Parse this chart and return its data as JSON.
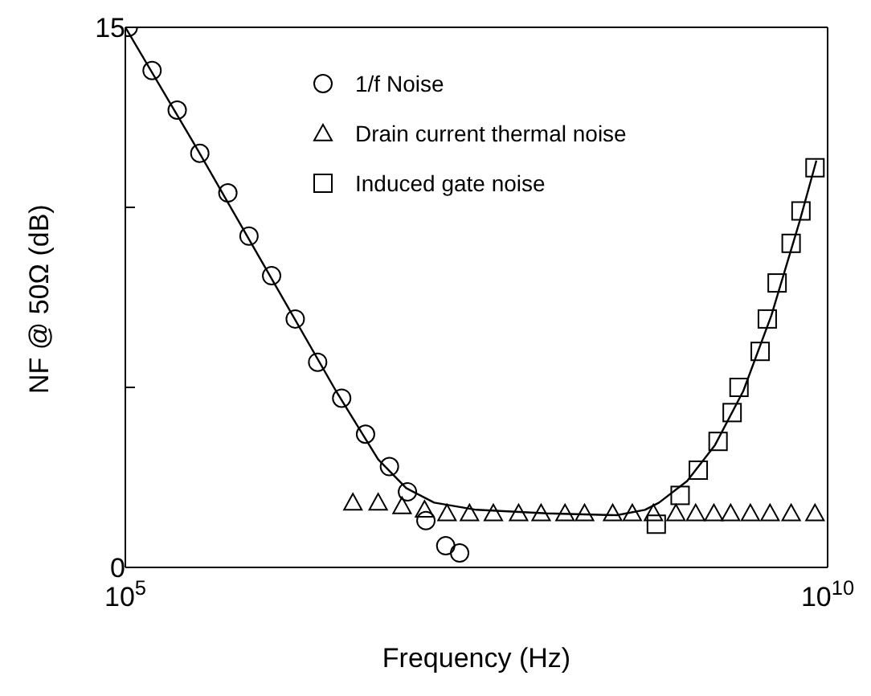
{
  "chart_data": {
    "type": "scatter",
    "xlabel": "Frequency (Hz)",
    "ylabel": "NF @ 50Ω (dB)",
    "log": "x",
    "xlim": [
      100000,
      10000000000
    ],
    "xticks": [
      {
        "value": 100000,
        "label": "10$^{5}$"
      },
      {
        "value": 10000000000,
        "label": "10$^{10}$"
      }
    ],
    "ylim": [
      0,
      15
    ],
    "yticks": [
      0,
      {
        "value": 5,
        "label": null
      },
      {
        "value": 10,
        "label": null
      },
      15
    ],
    "legend": "top right",
    "series": [
      {
        "name": "1/f Noise",
        "color": "#000000",
        "marker": "circle",
        "x": [
          105000.0,
          155000.0,
          234000.0,
          339000.0,
          537000.0,
          759000.0,
          1100000.0,
          1620000.0,
          2340000.0,
          3470000.0,
          5130000.0,
          7590000.0,
          10200000.0,
          13800000.0,
          19100000.0,
          24000000.0
        ],
        "values": [
          15.0,
          13.8,
          12.7,
          11.5,
          10.4,
          9.2,
          8.1,
          6.9,
          5.7,
          4.7,
          3.7,
          2.8,
          2.1,
          1.3,
          0.6,
          0.4
        ]
      },
      {
        "name": "Drain current thermal noise",
        "color": "#000000",
        "marker": "triangle",
        "x": [
          4170000.0,
          6310000.0,
          9330000.0,
          13500000.0,
          19500000.0,
          28200000.0,
          41700000.0,
          63100000.0,
          91200000.0,
          135000000.0,
          186000000.0,
          295000000.0,
          407000000.0,
          575000000.0,
          832000000.0,
          1150000000.0,
          1550000000.0,
          2040000000.0,
          2820000000.0,
          3890000000.0,
          5500000000.0,
          8130000000.0
        ],
        "values": [
          1.8,
          1.8,
          1.7,
          1.6,
          1.5,
          1.5,
          1.5,
          1.5,
          1.5,
          1.5,
          1.5,
          1.5,
          1.5,
          1.5,
          1.5,
          1.5,
          1.5,
          1.5,
          1.5,
          1.5,
          1.5,
          1.5
        ]
      },
      {
        "name": "Induced gate noise",
        "color": "#000000",
        "marker": "square",
        "x": [
          603000000.0,
          891000000.0,
          1200000000.0,
          1660000000.0,
          2090000000.0,
          2340000000.0,
          3310000000.0,
          3720000000.0,
          4370000000.0,
          5500000000.0,
          6460000000.0,
          8130000000.0
        ],
        "values": [
          1.2,
          2.0,
          2.7,
          3.5,
          4.3,
          5.0,
          6.0,
          6.9,
          7.9,
          9.0,
          9.9,
          11.1
        ]
      },
      {
        "type": "line",
        "color": "#000000",
        "marker": "none",
        "line_style": "solid",
        "x": [
          100000.0,
          316000.0,
          1000000.0,
          3160000.0,
          6310000.0,
          10000000.0,
          15800000.0,
          31600000.0,
          100000000.0,
          316000000.0,
          501000000.0,
          631000000.0,
          1000000000.0,
          1580000000.0,
          2510000000.0,
          3980000000.0,
          6310000000.0,
          8320000000.0
        ],
        "values": [
          15.0,
          11.7,
          8.3,
          4.9,
          3.0,
          2.2,
          1.8,
          1.6,
          1.5,
          1.45,
          1.6,
          1.8,
          2.4,
          3.4,
          4.9,
          7.0,
          9.6,
          11.3
        ]
      }
    ]
  }
}
